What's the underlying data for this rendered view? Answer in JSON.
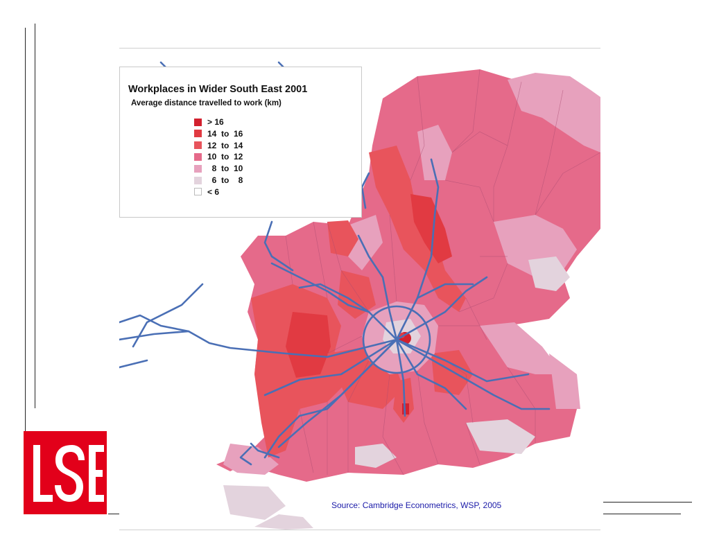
{
  "logo": {
    "text": "LSE",
    "color": "#e2001a"
  },
  "map": {
    "title": "Workplaces in Wider South East 2001",
    "subtitle": "Average distance travelled to work (km)",
    "legend": [
      {
        "label": "> 16",
        "color": "#d2202e"
      },
      {
        "label": "14  to  16",
        "color": "#e13a42"
      },
      {
        "label": "12  to  14",
        "color": "#e8545c"
      },
      {
        "label": "10  to  12",
        "color": "#e56a8a"
      },
      {
        "label": "  8  to  10",
        "color": "#e7a1bd"
      },
      {
        "label": "  6  to    8",
        "color": "#e3d3dd"
      },
      {
        "label": "< 6",
        "color": "#ffffff"
      }
    ],
    "road_color": "#4a6fb5",
    "source": "Source: Cambridge Econometrics, WSP, 2005"
  }
}
